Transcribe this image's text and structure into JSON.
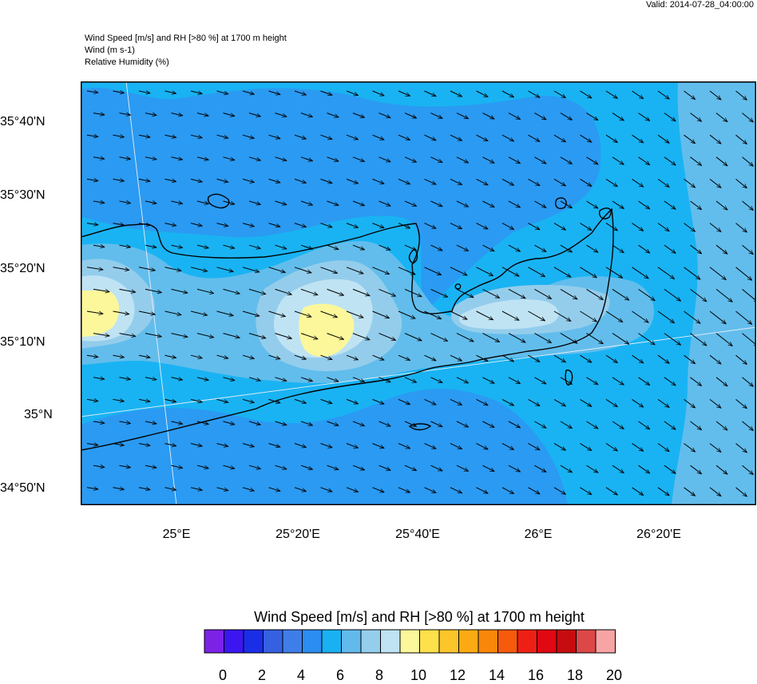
{
  "valid_label": "Valid: 2014-07-28_04:00:00",
  "header_lines": [
    "Wind Speed [m/s] and RH [>80 %] at 1700 m height",
    "Wind   (m s-1)",
    "Relative Humidity   (%)"
  ],
  "lat_labels": [
    "35°40'N",
    "35°30'N",
    "35°20'N",
    "35°10'N",
    "35°N",
    "34°50'N"
  ],
  "lon_labels": [
    "25°E",
    "25°20'E",
    "25°40'E",
    "26°E",
    "26°20'E"
  ],
  "colorbar": {
    "title": "Wind Speed [m/s] and RH [>80 %] at 1700 m height",
    "tick_labels": [
      "0",
      "2",
      "4",
      "6",
      "8",
      "10",
      "12",
      "14",
      "16",
      "18",
      "20"
    ],
    "colors": [
      "#7b22e6",
      "#3b16f0",
      "#1a2ee8",
      "#3560e0",
      "#3f7ee8",
      "#2b8cf2",
      "#19b1f2",
      "#62b9ec",
      "#94ceec",
      "#bfe3f3",
      "#fbf79a",
      "#fde04a",
      "#fcc52a",
      "#fbaa13",
      "#f98709",
      "#f65a0c",
      "#ee2015",
      "#e00812",
      "#c60c0e",
      "#dc4848",
      "#f7a4a4"
    ]
  },
  "map_colors": {
    "speed_4_5": "#3f8ae8",
    "speed_5_6": "#2b9af2",
    "speed_6_7": "#19b3f3",
    "speed_7_8": "#62bdec",
    "speed_8_9": "#94cdec",
    "speed_9_10": "#bfe3f3",
    "speed_10_11": "#fbf79a"
  }
}
